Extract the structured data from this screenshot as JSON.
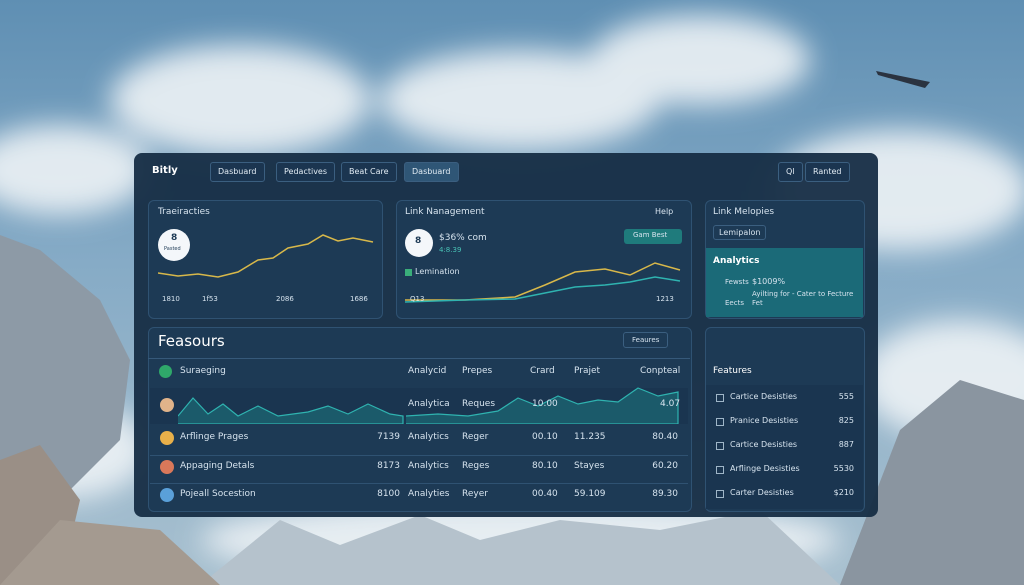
{
  "nav": {
    "brand": "Bitly",
    "tabs": [
      "Dasbuard",
      "Pedactives",
      "Beat Care",
      "Dasbuard"
    ],
    "right": [
      "Ql",
      "Ranted"
    ]
  },
  "card1": {
    "title": "Traeiracties",
    "badge": "8",
    "badge_sub": "Pasted",
    "axis": [
      "1810",
      "1f53",
      "2086",
      "1686"
    ]
  },
  "card2": {
    "title": "Link Nanagement",
    "help": "Help",
    "badge": "8",
    "stat": "$36% com",
    "stat_sub": "4:8.39",
    "button": "Gam Best",
    "check": "Lemination",
    "axis": [
      "Q13",
      "1213"
    ]
  },
  "card3": {
    "title": "Link Melopies",
    "chip": "Lemipalon",
    "section": "Analytics",
    "line1_label": "Fewsts",
    "line1_value": "$1009%",
    "line2": "Ayilting for - Cater to Fecture",
    "line3_label": "Eects",
    "line3_value": "Fet"
  },
  "table": {
    "title": "Feasours",
    "button": "Feaures",
    "header": [
      "Suraeging",
      "Analycid",
      "Prepes",
      "Crard",
      "Prajet",
      "Conpteal"
    ],
    "chart_row": [
      "Analytica",
      "Reques",
      "10.00",
      "4.07"
    ],
    "rows": [
      [
        "Arflinge Prages",
        "7139",
        "Analytics",
        "Reger",
        "00.10",
        "11.235",
        "80.40"
      ],
      [
        "Appaging Detals",
        "8173",
        "Analytics",
        "Reges",
        "80.10",
        "Stayes",
        "60.20"
      ],
      [
        "Pojeall Socestion",
        "8100",
        "Analyties",
        "Reyer",
        "00.40",
        "59.109",
        "89.30"
      ]
    ]
  },
  "features": {
    "title": "Features",
    "rows": [
      [
        "Cartice Desisties",
        "555"
      ],
      [
        "Pranice Desisties",
        "825"
      ],
      [
        "Cartice Desisties",
        "887"
      ],
      [
        "Arflinge Desisties",
        "5530"
      ],
      [
        "Carter Desisties",
        "$210"
      ]
    ]
  }
}
